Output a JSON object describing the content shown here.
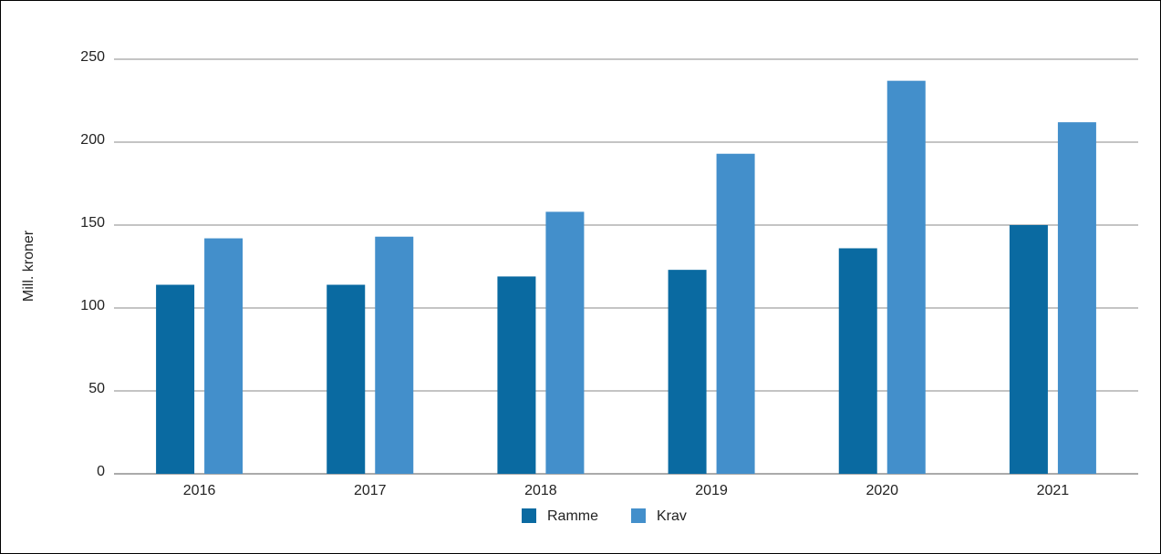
{
  "chart_data": {
    "type": "bar",
    "ylabel": "Mill. kroner",
    "categories": [
      "2016",
      "2017",
      "2018",
      "2019",
      "2020",
      "2021"
    ],
    "series": [
      {
        "name": "Ramme",
        "color": "#0a6aa1",
        "values": [
          114,
          114,
          119,
          123,
          136,
          150
        ]
      },
      {
        "name": "Krav",
        "color": "#438fcb",
        "values": [
          142,
          143,
          158,
          193,
          237,
          212
        ]
      }
    ],
    "ylim": [
      0,
      250
    ],
    "yticks": [
      0,
      50,
      100,
      150,
      200,
      250
    ],
    "grid": true,
    "legend": "bottom"
  }
}
